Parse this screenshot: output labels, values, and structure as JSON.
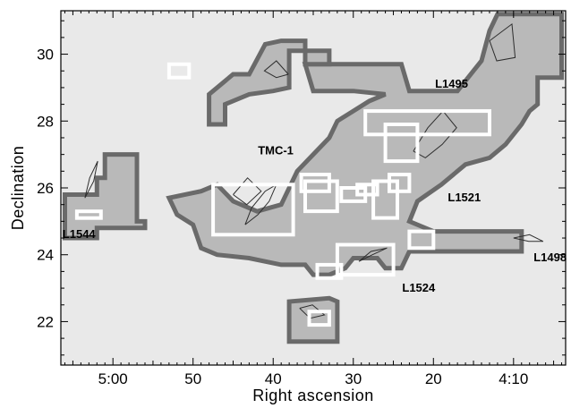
{
  "chart_data": {
    "type": "map",
    "xlabel": "Right ascension",
    "ylabel": "Declination",
    "x_ticks": [
      {
        "value": 300,
        "label": "5:00"
      },
      {
        "value": 290,
        "label": "50"
      },
      {
        "value": 280,
        "label": "40"
      },
      {
        "value": 270,
        "label": "30"
      },
      {
        "value": 260,
        "label": "20"
      },
      {
        "value": 250,
        "label": "4:10"
      }
    ],
    "y_ticks": [
      {
        "value": 22,
        "label": "22"
      },
      {
        "value": 24,
        "label": "24"
      },
      {
        "value": 26,
        "label": "26"
      },
      {
        "value": 28,
        "label": "28"
      },
      {
        "value": 30,
        "label": "30"
      }
    ],
    "x_range_minutes": [
      306.5,
      243.5
    ],
    "y_range_deg": [
      20.7,
      31.3
    ],
    "grid": false,
    "colors": {
      "background": "#e9e9e9",
      "region_fill": "#b9b9b9",
      "region_outline": "#6a6a6a",
      "contours": "#2e2e2e",
      "field_boxes": "#ffffff"
    },
    "labels": [
      {
        "text": "L1495",
        "ra": 259.8,
        "dec": 29.0
      },
      {
        "text": "TMC-1",
        "ra": 281.9,
        "dec": 27.0
      },
      {
        "text": "L1521",
        "ra": 258.2,
        "dec": 25.6
      },
      {
        "text": "L1544",
        "ra": 306.3,
        "dec": 24.5
      },
      {
        "text": "L1524",
        "ra": 263.9,
        "dec": 22.9
      },
      {
        "text": "L1498",
        "ra": 247.5,
        "dec": 23.8
      }
    ],
    "outlined_regions": [
      {
        "name": "main-complex",
        "points": [
          [
            276,
            29.7
          ],
          [
            264,
            29.7
          ],
          [
            263,
            28.9
          ],
          [
            260,
            28.9
          ],
          [
            257,
            28.9
          ],
          [
            255,
            29.5
          ],
          [
            254,
            29.8
          ],
          [
            253,
            30.7
          ],
          [
            252,
            31.2
          ],
          [
            244,
            31.2
          ],
          [
            244,
            29.3
          ],
          [
            247,
            29.3
          ],
          [
            247,
            28.5
          ],
          [
            248,
            28.3
          ],
          [
            249,
            27.9
          ],
          [
            251,
            27.3
          ],
          [
            253,
            26.9
          ],
          [
            256,
            26.7
          ],
          [
            259,
            26.1
          ],
          [
            262,
            25.6
          ],
          [
            263,
            25.0
          ],
          [
            260,
            24.7
          ],
          [
            249,
            24.7
          ],
          [
            249,
            24.1
          ],
          [
            263,
            24.1
          ],
          [
            264,
            23.6
          ],
          [
            266,
            23.6
          ],
          [
            267,
            23.9
          ],
          [
            270,
            23.9
          ],
          [
            271,
            23.6
          ],
          [
            273,
            23.4
          ],
          [
            275,
            23.4
          ],
          [
            276,
            23.7
          ],
          [
            279,
            23.7
          ],
          [
            283,
            23.9
          ],
          [
            287,
            24.0
          ],
          [
            289,
            24.2
          ],
          [
            290,
            24.9
          ],
          [
            292,
            25.2
          ],
          [
            293,
            25.7
          ],
          [
            289,
            25.9
          ],
          [
            287,
            26.1
          ],
          [
            285,
            25.6
          ],
          [
            282,
            25.3
          ],
          [
            279,
            25.5
          ],
          [
            277,
            26.5
          ],
          [
            275,
            27.0
          ],
          [
            273,
            27.5
          ],
          [
            272,
            28.0
          ],
          [
            268,
            28.6
          ],
          [
            266,
            28.8
          ],
          [
            270,
            28.9
          ],
          [
            275,
            28.9
          ],
          [
            276,
            29.7
          ]
        ]
      },
      {
        "name": "north-arm",
        "points": [
          [
            273,
            29.7
          ],
          [
            273,
            30.1
          ],
          [
            278,
            30.1
          ],
          [
            278,
            29.0
          ],
          [
            280,
            28.9
          ],
          [
            283,
            28.8
          ],
          [
            286,
            28.5
          ],
          [
            286,
            27.9
          ],
          [
            288,
            27.9
          ],
          [
            288,
            28.8
          ],
          [
            285,
            29.4
          ],
          [
            283,
            29.4
          ],
          [
            281,
            30.3
          ],
          [
            279,
            30.4
          ],
          [
            276,
            30.4
          ],
          [
            276,
            29.7
          ]
        ]
      },
      {
        "name": "l1544-region",
        "points": [
          [
            306,
            25.8
          ],
          [
            302,
            25.8
          ],
          [
            302,
            26.3
          ],
          [
            301,
            26.3
          ],
          [
            301,
            27.0
          ],
          [
            297,
            27.0
          ],
          [
            297,
            25.0
          ],
          [
            296,
            25.0
          ],
          [
            296,
            24.8
          ],
          [
            302,
            24.8
          ],
          [
            302,
            24.5
          ],
          [
            306,
            24.5
          ],
          [
            306,
            25.8
          ]
        ]
      },
      {
        "name": "south-patch",
        "points": [
          [
            278,
            22.6
          ],
          [
            278,
            21.4
          ],
          [
            272,
            21.4
          ],
          [
            272,
            22.6
          ],
          [
            273,
            22.7
          ],
          [
            278,
            22.6
          ]
        ]
      }
    ],
    "field_boxes": [
      {
        "ra": [
          293.0,
          290.5
        ],
        "dec": [
          29.3,
          29.7
        ]
      },
      {
        "ra": [
          268.5,
          253.0
        ],
        "dec": [
          27.6,
          28.3
        ]
      },
      {
        "ra": [
          266.0,
          262.0
        ],
        "dec": [
          26.8,
          27.9
        ]
      },
      {
        "ra": [
          287.5,
          277.5
        ],
        "dec": [
          24.6,
          26.1
        ]
      },
      {
        "ra": [
          276.5,
          273.0
        ],
        "dec": [
          25.9,
          26.4
        ]
      },
      {
        "ra": [
          276.0,
          272.0
        ],
        "dec": [
          25.3,
          26.2
        ]
      },
      {
        "ra": [
          269.5,
          267.0
        ],
        "dec": [
          25.8,
          26.1
        ]
      },
      {
        "ra": [
          267.5,
          264.5
        ],
        "dec": [
          25.1,
          26.2
        ]
      },
      {
        "ra": [
          265.5,
          263.0
        ],
        "dec": [
          25.9,
          26.4
        ]
      },
      {
        "ra": [
          263.0,
          260.0
        ],
        "dec": [
          24.2,
          24.7
        ]
      },
      {
        "ra": [
          274.5,
          271.5
        ],
        "dec": [
          23.3,
          23.7
        ]
      },
      {
        "ra": [
          272.0,
          265.0
        ],
        "dec": [
          23.4,
          24.3
        ]
      },
      {
        "ra": [
          275.5,
          273.0
        ],
        "dec": [
          21.9,
          22.3
        ]
      },
      {
        "ra": [
          304.5,
          301.5
        ],
        "dec": [
          25.1,
          25.3
        ]
      },
      {
        "ra": [
          271.5,
          268.5
        ],
        "dec": [
          25.6,
          26.0
        ]
      }
    ],
    "contours": [
      [
        [
          283.5,
          24.9
        ],
        [
          281.9,
          25.2
        ],
        [
          280.5,
          25.6
        ],
        [
          279.6,
          26.1
        ],
        [
          281.0,
          25.9
        ],
        [
          282.7,
          25.4
        ],
        [
          283.5,
          24.9
        ]
      ],
      [
        [
          262.5,
          27.1
        ],
        [
          260.7,
          27.8
        ],
        [
          258.8,
          28.3
        ],
        [
          257.1,
          27.8
        ],
        [
          258.9,
          27.3
        ],
        [
          261.0,
          26.9
        ],
        [
          262.5,
          27.1
        ]
      ],
      [
        [
          269.3,
          23.8
        ],
        [
          267.6,
          24.0
        ],
        [
          265.8,
          24.2
        ],
        [
          267.8,
          24.1
        ],
        [
          269.3,
          23.8
        ]
      ],
      [
        [
          250.0,
          24.5
        ],
        [
          248.0,
          24.6
        ],
        [
          246.3,
          24.4
        ],
        [
          248.1,
          24.4
        ],
        [
          250.0,
          24.5
        ]
      ],
      [
        [
          253.0,
          30.4
        ],
        [
          250.2,
          30.9
        ],
        [
          249.8,
          29.9
        ],
        [
          252.1,
          29.8
        ],
        [
          253.0,
          30.4
        ]
      ],
      [
        [
          278.1,
          29.4
        ],
        [
          279.6,
          29.8
        ],
        [
          281.1,
          29.5
        ],
        [
          279.6,
          29.3
        ],
        [
          278.1,
          29.4
        ]
      ],
      [
        [
          303.5,
          25.7
        ],
        [
          302.4,
          26.2
        ],
        [
          301.9,
          26.8
        ],
        [
          302.9,
          26.3
        ],
        [
          303.5,
          25.7
        ]
      ],
      [
        [
          276.7,
          22.4
        ],
        [
          275.1,
          22.5
        ],
        [
          273.6,
          22.2
        ],
        [
          275.4,
          22.1
        ],
        [
          276.7,
          22.4
        ]
      ],
      [
        [
          285.0,
          25.8
        ],
        [
          283.2,
          26.3
        ],
        [
          281.5,
          25.9
        ],
        [
          283.3,
          25.5
        ],
        [
          285.0,
          25.8
        ]
      ]
    ]
  }
}
